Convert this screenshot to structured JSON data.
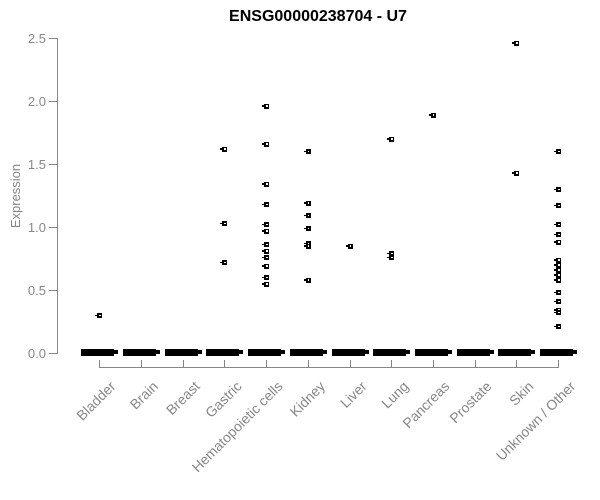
{
  "chart_data": {
    "type": "scatter",
    "title": "ENSG00000238704 - U7",
    "xlabel": "",
    "ylabel": "Expression",
    "ylim": [
      -0.12,
      2.5
    ],
    "yticks": [
      0.0,
      0.5,
      1.0,
      1.5,
      2.0,
      2.5
    ],
    "grid": false,
    "legend": false,
    "marker_style": "open-square-with-left-tick",
    "point_color": "#000000",
    "axis_color": "#878787",
    "zero_cluster_note": "every category shows a dense horizontal bar of many overlapping points at expression 0",
    "categories": [
      "Bladder",
      "Brain",
      "Breast",
      "Gastric",
      "Hematopoietic cells",
      "Kidney",
      "Liver",
      "Lung",
      "Pancreas",
      "Prostate",
      "Skin",
      "Unknown / Other"
    ],
    "series": [
      {
        "category": "Bladder",
        "zero_cluster": true,
        "values": [
          0.3
        ]
      },
      {
        "category": "Brain",
        "zero_cluster": true,
        "values": []
      },
      {
        "category": "Breast",
        "zero_cluster": true,
        "values": []
      },
      {
        "category": "Gastric",
        "zero_cluster": true,
        "values": [
          1.62,
          1.03,
          0.72
        ]
      },
      {
        "category": "Hematopoietic cells",
        "zero_cluster": true,
        "values": [
          1.96,
          1.66,
          1.34,
          1.18,
          1.02,
          0.97,
          0.86,
          0.81,
          0.76,
          0.69,
          0.6,
          0.55
        ]
      },
      {
        "category": "Kidney",
        "zero_cluster": true,
        "values": [
          1.6,
          1.19,
          1.09,
          0.99,
          0.87,
          0.85,
          0.58
        ]
      },
      {
        "category": "Liver",
        "zero_cluster": true,
        "values": [
          0.85
        ]
      },
      {
        "category": "Lung",
        "zero_cluster": true,
        "values": [
          1.7,
          0.79,
          0.76
        ]
      },
      {
        "category": "Pancreas",
        "zero_cluster": true,
        "values": [
          1.89
        ]
      },
      {
        "category": "Prostate",
        "zero_cluster": true,
        "values": []
      },
      {
        "category": "Skin",
        "zero_cluster": true,
        "values": [
          2.46,
          1.43
        ]
      },
      {
        "category": "Unknown / Other",
        "zero_cluster": true,
        "values": [
          1.6,
          1.3,
          1.17,
          1.02,
          0.94,
          0.88,
          0.74,
          0.7,
          0.66,
          0.62,
          0.58,
          0.48,
          0.41,
          0.34,
          0.32,
          0.21
        ]
      }
    ]
  }
}
